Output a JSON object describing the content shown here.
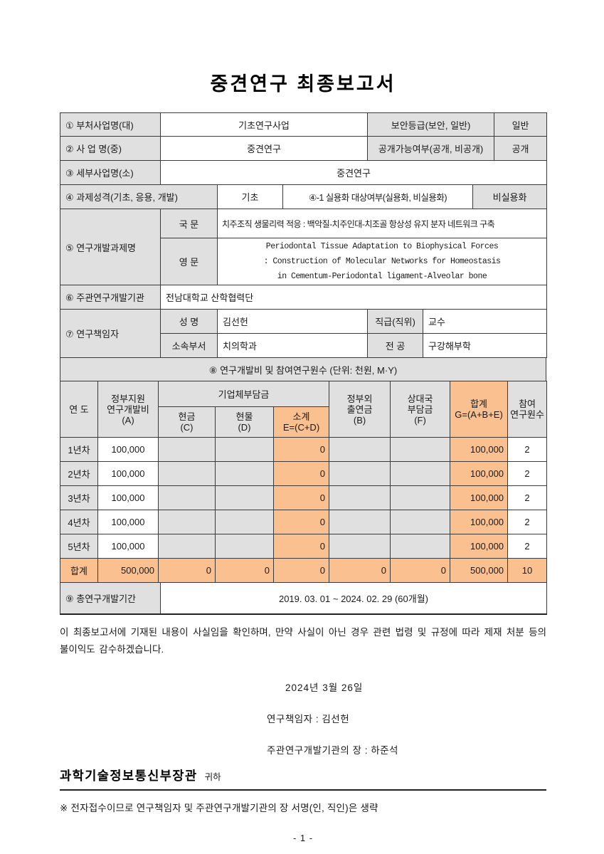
{
  "title": "중견연구 최종보고서",
  "colors": {
    "cell_gray": "#e0e0e0",
    "highlight_orange": "#fbc090"
  },
  "info": {
    "r1": {
      "label": "① 부처사업명(대)",
      "value": "기초연구사업",
      "label2": "보안등급(보안, 일반)",
      "value2": "일반"
    },
    "r2": {
      "label": "② 사 업 명(중)",
      "value": "중견연구",
      "label2": "공개가능여부(공개, 비공개)",
      "value2": "공개"
    },
    "r3": {
      "label": "③ 세부사업명(소)",
      "value": "중견연구"
    },
    "r4": {
      "label": "④ 과제성격(기초, 응용, 개발)",
      "value": "기초",
      "label2": "④-1 실용화 대상여부(실용화, 비실용화)",
      "value2": "비실용화"
    },
    "r5": {
      "label": "⑤ 연구개발과제명",
      "kor_label": "국 문",
      "kor_title": "치주조직 생물리력 적응 : 백악질-치주인대-치조골 항상성 유지  분자 네트워크 구축",
      "eng_label": "영 문",
      "eng_title": "Periodontal Tissue Adaptation to Biophysical Forces\n: Construction of Molecular Networks for Homeostasis\nin Cementum-Periodontal ligament-Alveolar bone"
    },
    "r6": {
      "label": "⑥ 주관연구개발기관",
      "value": "전남대학교 산학협력단"
    },
    "r7": {
      "label": "⑦ 연구책임자",
      "name_label": "성 명",
      "name": "김선헌",
      "rank_label": "직급(직위)",
      "rank": "교수",
      "dept_label": "소속부서",
      "dept": "치의학과",
      "major_label": "전 공",
      "major": "구강해부학"
    }
  },
  "budget": {
    "section_header": "⑧ 연구개발비 및 참여연구원수 (단위: 천원, M·Y)",
    "col_year": "연 도",
    "col_gov": "정부지원\n연구개발비\n(A)",
    "col_company": "기업체부담금",
    "col_cash": "현금\n(C)",
    "col_inkind": "현물\n(D)",
    "col_subtotal": "소계\nE=(C+D)",
    "col_nongov": "정부외\n출연금\n(B)",
    "col_partner": "상대국\n부담금\n(F)",
    "col_total": "합계\nG=(A+B+E)",
    "col_members": "참여\n연구원수",
    "rows": [
      [
        "1년차",
        "100,000",
        "",
        "",
        "0",
        "",
        "",
        "100,000",
        "2"
      ],
      [
        "2년차",
        "100,000",
        "",
        "",
        "0",
        "",
        "",
        "100,000",
        "2"
      ],
      [
        "3년차",
        "100,000",
        "",
        "",
        "0",
        "",
        "",
        "100,000",
        "2"
      ],
      [
        "4년차",
        "100,000",
        "",
        "",
        "0",
        "",
        "",
        "100,000",
        "2"
      ],
      [
        "5년차",
        "100,000",
        "",
        "",
        "0",
        "",
        "",
        "100,000",
        "2"
      ]
    ],
    "total_row": [
      "합계",
      "500,000",
      "0",
      "0",
      "0",
      "0",
      "0",
      "500,000",
      "10"
    ]
  },
  "period": {
    "label": "⑨ 총연구개발기간",
    "value": "2019. 03. 01 ~ 2024. 02. 29 (60개월)"
  },
  "statement": "이 최종보고서에 기재된 내용이 사실임을 확인하며, 만약 사실이 아닌 경우 관련 법령 및 규정에 따라 제재 처분 등의 불이익도 감수하겠습니다.",
  "sign": {
    "date": "2024년  3월  26일",
    "pi": "연구책임자 : 김선헌",
    "head": "주관연구개발기관의 장 : 하준석"
  },
  "footer": {
    "minister": "과학기술정보통신부장관",
    "honorific": "귀하",
    "note": "※ 전자접수이므로 연구책임자 및 주관연구개발기관의 장 서명(인, 직인)은 생략",
    "page_number": "- 1 -"
  }
}
